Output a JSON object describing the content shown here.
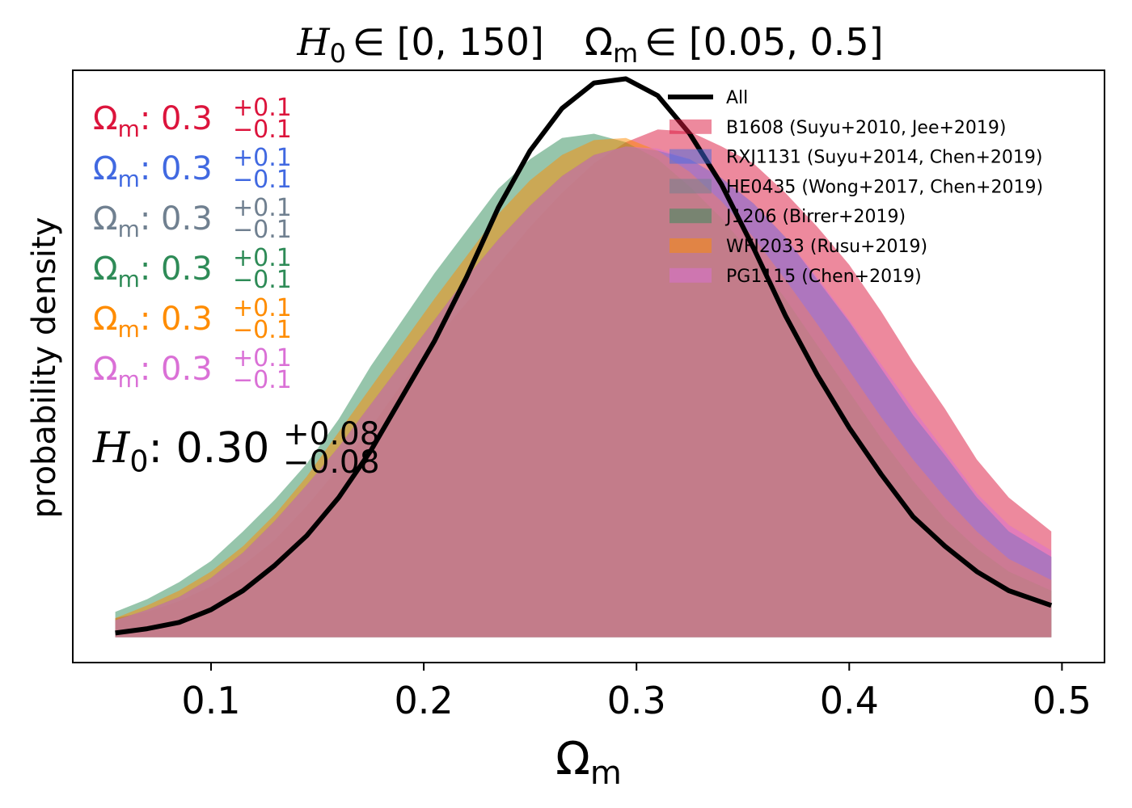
{
  "chart_data": {
    "type": "area",
    "title": {
      "h_symbol": "H",
      "h_sub": "0",
      "h_range": "∈ [0, 150]",
      "om_symbol": "Ω",
      "om_sub": "m",
      "om_range": "∈ [0.05, 0.5]"
    },
    "xlabel": {
      "symbol": "Ω",
      "sub": "m"
    },
    "ylabel": "probability density",
    "xlim": [
      0.035,
      0.52
    ],
    "ylim": [
      -0.12,
      2.68
    ],
    "x_ticks": [
      0.1,
      0.2,
      0.3,
      0.4,
      0.5
    ],
    "x_tick_labels": [
      "0.1",
      "0.2",
      "0.3",
      "0.4",
      "0.5"
    ],
    "y_ticks_visible": false,
    "grid": false,
    "legend_position": "top-right",
    "legend": [
      "All",
      "B1608 (Suyu+2010, Jee+2019)",
      "RXJ1131 (Suyu+2014, Chen+2019)",
      "HE0435 (Wong+2017, Chen+2019)",
      "J1206 (Birrer+2019)",
      "WFI2033 (Rusu+2019)",
      "PG1115 (Chen+2019)"
    ],
    "x": [
      0.055,
      0.07,
      0.085,
      0.1,
      0.115,
      0.13,
      0.145,
      0.16,
      0.175,
      0.19,
      0.205,
      0.22,
      0.235,
      0.25,
      0.265,
      0.28,
      0.295,
      0.31,
      0.325,
      0.34,
      0.355,
      0.37,
      0.385,
      0.4,
      0.415,
      0.43,
      0.445,
      0.46,
      0.475,
      0.495
    ],
    "series": [
      {
        "name": "B1608 (Suyu+2010, Jee+2019)",
        "color": "#dc143c",
        "alpha": 0.5,
        "values": [
          0.09,
          0.12,
          0.17,
          0.24,
          0.34,
          0.46,
          0.62,
          0.8,
          0.99,
          1.2,
          1.4,
          1.58,
          1.76,
          1.94,
          2.1,
          2.24,
          2.34,
          2.4,
          2.39,
          2.32,
          2.24,
          2.1,
          1.94,
          1.76,
          1.54,
          1.3,
          1.08,
          0.84,
          0.66,
          0.5
        ]
      },
      {
        "name": "RXJ1131 (Suyu+2014, Chen+2019)",
        "color": "#4169e1",
        "alpha": 0.5,
        "values": [
          0.08,
          0.13,
          0.19,
          0.28,
          0.4,
          0.55,
          0.72,
          0.9,
          1.1,
          1.3,
          1.5,
          1.7,
          1.88,
          2.04,
          2.18,
          2.28,
          2.32,
          2.3,
          2.26,
          2.17,
          2.05,
          1.89,
          1.69,
          1.49,
          1.27,
          1.05,
          0.86,
          0.66,
          0.5,
          0.38
        ]
      },
      {
        "name": "HE0435 (Wong+2017, Chen+2019)",
        "color": "#708090",
        "alpha": 0.5,
        "values": [
          0.08,
          0.13,
          0.19,
          0.28,
          0.4,
          0.55,
          0.72,
          0.9,
          1.1,
          1.3,
          1.5,
          1.7,
          1.88,
          2.04,
          2.18,
          2.28,
          2.32,
          2.3,
          2.26,
          2.17,
          2.05,
          1.89,
          1.69,
          1.49,
          1.27,
          1.05,
          0.86,
          0.66,
          0.5,
          0.38
        ]
      },
      {
        "name": "J1206 (Birrer+2019)",
        "color": "#2e8b57",
        "alpha": 0.5,
        "values": [
          0.12,
          0.18,
          0.26,
          0.36,
          0.5,
          0.65,
          0.82,
          1.03,
          1.28,
          1.5,
          1.72,
          1.92,
          2.12,
          2.26,
          2.36,
          2.38,
          2.34,
          2.26,
          2.13,
          1.98,
          1.8,
          1.6,
          1.38,
          1.16,
          0.94,
          0.74,
          0.56,
          0.42,
          0.31,
          0.22
        ]
      },
      {
        "name": "WFI2033 (Rusu+2019)",
        "color": "#ff8c00",
        "alpha": 0.5,
        "values": [
          0.09,
          0.15,
          0.22,
          0.31,
          0.43,
          0.58,
          0.76,
          0.97,
          1.18,
          1.39,
          1.6,
          1.8,
          2.0,
          2.16,
          2.28,
          2.35,
          2.36,
          2.3,
          2.2,
          2.06,
          1.89,
          1.69,
          1.48,
          1.26,
          1.04,
          0.84,
          0.66,
          0.5,
          0.37,
          0.27
        ]
      },
      {
        "name": "PG1115 (Chen+2019)",
        "color": "#da70d6",
        "alpha": 0.5,
        "values": [
          0.08,
          0.13,
          0.19,
          0.28,
          0.4,
          0.55,
          0.72,
          0.9,
          1.1,
          1.3,
          1.5,
          1.7,
          1.88,
          2.04,
          2.18,
          2.28,
          2.32,
          2.31,
          2.26,
          2.17,
          2.05,
          1.89,
          1.7,
          1.5,
          1.29,
          1.08,
          0.88,
          0.68,
          0.53,
          0.41
        ]
      },
      {
        "name": "All",
        "color": "#000000",
        "line": true,
        "values": [
          0.02,
          0.04,
          0.07,
          0.13,
          0.22,
          0.34,
          0.48,
          0.66,
          0.88,
          1.14,
          1.4,
          1.7,
          2.03,
          2.3,
          2.5,
          2.62,
          2.64,
          2.56,
          2.38,
          2.14,
          1.84,
          1.52,
          1.24,
          0.99,
          0.77,
          0.57,
          0.43,
          0.31,
          0.22,
          0.15
        ]
      }
    ],
    "annotations": [
      {
        "label": "Ω",
        "sub": "m",
        "value": ": 0.3",
        "sup_err": "+0.1",
        "sub_err": "−0.1",
        "color": "#dc143c"
      },
      {
        "label": "Ω",
        "sub": "m",
        "value": ": 0.3",
        "sup_err": "+0.1",
        "sub_err": "−0.1",
        "color": "#4169e1"
      },
      {
        "label": "Ω",
        "sub": "m",
        "value": ": 0.3",
        "sup_err": "+0.1",
        "sub_err": "−0.1",
        "color": "#708090"
      },
      {
        "label": "Ω",
        "sub": "m",
        "value": ": 0.3",
        "sup_err": "+0.1",
        "sub_err": "−0.1",
        "color": "#2e8b57"
      },
      {
        "label": "Ω",
        "sub": "m",
        "value": ": 0.3",
        "sup_err": "+0.1",
        "sub_err": "−0.1",
        "color": "#ff8c00"
      },
      {
        "label": "Ω",
        "sub": "m",
        "value": ": 0.3",
        "sup_err": "+0.1",
        "sub_err": "−0.1",
        "color": "#da70d6"
      },
      {
        "label": "H",
        "sub": "0",
        "value": ": 0.30",
        "sup_err": "+0.08",
        "sub_err": "−0.08",
        "color": "#000000"
      }
    ]
  }
}
